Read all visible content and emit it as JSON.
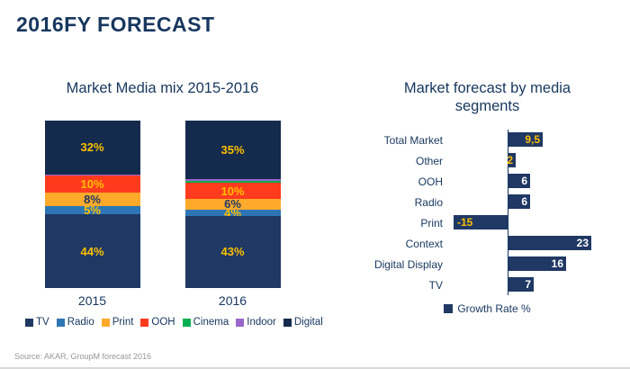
{
  "slide": {
    "title": "2016FY FORECAST",
    "source": "Source: AKAR, GroupM forecast 2016"
  },
  "colors": {
    "title_navy": "#17375E",
    "label_yellow": "#FFC000",
    "bar_navy": "#1F3864"
  },
  "chart_data": [
    {
      "type": "bar",
      "orientation": "vertical-stacked",
      "title": "Market Media mix 2015-2016",
      "categories": [
        "2015",
        "2016"
      ],
      "unit": "%",
      "ylim": [
        0,
        100
      ],
      "legend_position": "bottom",
      "series": [
        {
          "name": "TV",
          "color": "#1F3864",
          "label_color": "#FFC000",
          "values": [
            44,
            43
          ],
          "labels": [
            "44%",
            "43%"
          ]
        },
        {
          "name": "Radio",
          "color": "#2E75B6",
          "label_color": "#FFC000",
          "values": [
            5,
            4
          ],
          "labels": [
            "5%",
            "4%"
          ]
        },
        {
          "name": "Print",
          "color": "#FFAA2B",
          "label_color": "#1F3864",
          "values": [
            8,
            6
          ],
          "labels": [
            "8%",
            "6%"
          ]
        },
        {
          "name": "OOH",
          "color": "#FF3B1E",
          "label_color": "#FFC000",
          "values": [
            10,
            10
          ],
          "labels": [
            "10%",
            "10%"
          ]
        },
        {
          "name": "Cinema",
          "color": "#00B050",
          "label_color": "#FFC000",
          "values": [
            0.3,
            1
          ],
          "labels": [
            "",
            ""
          ]
        },
        {
          "name": "Indoor",
          "color": "#9966CC",
          "label_color": "#FFC000",
          "values": [
            0.7,
            1
          ],
          "labels": [
            "",
            ""
          ]
        },
        {
          "name": "Digital",
          "color": "#142B4D",
          "label_color": "#FFC000",
          "values": [
            32,
            35
          ],
          "labels": [
            "32%",
            "35%"
          ]
        }
      ]
    },
    {
      "type": "bar",
      "orientation": "horizontal",
      "title": "Market forecast by media segments",
      "categories": [
        "Total Market",
        "Other",
        "OOH",
        "Radio",
        "Print",
        "Context",
        "Digital Display",
        "TV"
      ],
      "values": [
        9.5,
        2,
        6,
        6,
        -15,
        23,
        16,
        7
      ],
      "value_labels": [
        "9,5",
        "2",
        "6",
        "6",
        "-15",
        "23",
        "16",
        "7"
      ],
      "value_label_colors": [
        "#FFC000",
        "#FFC000",
        "#FFFFFF",
        "#FFFFFF",
        "#FFC000",
        "#FFFFFF",
        "#FFFFFF",
        "#FFFFFF"
      ],
      "bar_color": "#1F3864",
      "legend": "Growth Rate %",
      "xlim": [
        -15,
        23
      ]
    }
  ]
}
